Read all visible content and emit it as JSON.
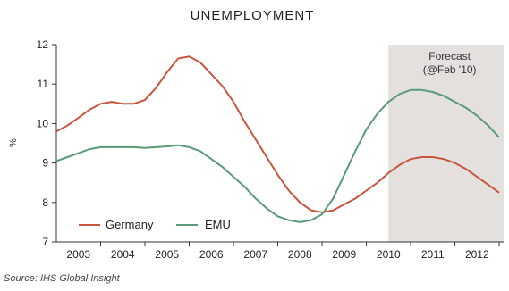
{
  "colors": {
    "germany": "#c8553d",
    "emu": "#5b9a78",
    "forecast_shade": "#e3e0dd",
    "axis": "#333333",
    "text": "#222222"
  },
  "chart_data": {
    "type": "line",
    "title": "UNEMPLOYMENT",
    "ylabel": "%",
    "xlabel": "",
    "ylim": [
      7,
      12
    ],
    "xlim": [
      2002.5,
      2012.6
    ],
    "yticks": [
      7,
      8,
      9,
      10,
      11,
      12
    ],
    "x_tick_labels": [
      "2003",
      "2004",
      "2005",
      "2006",
      "2007",
      "2008",
      "2009",
      "2010",
      "2011",
      "2012"
    ],
    "x_ticks_at": [
      2003,
      2004,
      2005,
      2006,
      2007,
      2008,
      2009,
      2010,
      2011,
      2012
    ],
    "forecast_region": {
      "start": 2010,
      "end": 2012.6,
      "label_line1": "Forecast",
      "label_line2": "(@Feb '10)"
    },
    "legend": {
      "placement": "bottom-left"
    },
    "grid": false,
    "series": [
      {
        "name": "Germany",
        "color": "#c8553d",
        "x": [
          2002.5,
          2002.75,
          2003.0,
          2003.25,
          2003.5,
          2003.75,
          2004.0,
          2004.25,
          2004.5,
          2004.75,
          2005.0,
          2005.25,
          2005.5,
          2005.75,
          2006.0,
          2006.25,
          2006.5,
          2006.75,
          2007.0,
          2007.25,
          2007.5,
          2007.75,
          2008.0,
          2008.25,
          2008.5,
          2008.75,
          2009.0,
          2009.25,
          2009.5,
          2009.75,
          2010.0,
          2010.25,
          2010.5,
          2010.75,
          2011.0,
          2011.25,
          2011.5,
          2011.75,
          2012.0,
          2012.25,
          2012.5
        ],
        "values": [
          9.8,
          9.95,
          10.15,
          10.35,
          10.5,
          10.55,
          10.5,
          10.5,
          10.6,
          10.9,
          11.3,
          11.65,
          11.7,
          11.55,
          11.25,
          10.95,
          10.55,
          10.05,
          9.6,
          9.15,
          8.7,
          8.3,
          8.0,
          7.8,
          7.75,
          7.8,
          7.95,
          8.1,
          8.3,
          8.5,
          8.75,
          8.95,
          9.1,
          9.15,
          9.15,
          9.1,
          9.0,
          8.85,
          8.65,
          8.45,
          8.25
        ]
      },
      {
        "name": "EMU",
        "color": "#5b9a78",
        "x": [
          2002.5,
          2002.75,
          2003.0,
          2003.25,
          2003.5,
          2003.75,
          2004.0,
          2004.25,
          2004.5,
          2004.75,
          2005.0,
          2005.25,
          2005.5,
          2005.75,
          2006.0,
          2006.25,
          2006.5,
          2006.75,
          2007.0,
          2007.25,
          2007.5,
          2007.75,
          2008.0,
          2008.25,
          2008.5,
          2008.75,
          2009.0,
          2009.25,
          2009.5,
          2009.75,
          2010.0,
          2010.25,
          2010.5,
          2010.75,
          2011.0,
          2011.25,
          2011.5,
          2011.75,
          2012.0,
          2012.25,
          2012.5
        ],
        "values": [
          9.05,
          9.15,
          9.25,
          9.35,
          9.4,
          9.4,
          9.4,
          9.4,
          9.38,
          9.4,
          9.42,
          9.45,
          9.4,
          9.3,
          9.1,
          8.9,
          8.65,
          8.4,
          8.1,
          7.85,
          7.65,
          7.55,
          7.5,
          7.55,
          7.7,
          8.1,
          8.7,
          9.3,
          9.85,
          10.25,
          10.55,
          10.75,
          10.85,
          10.85,
          10.8,
          10.7,
          10.55,
          10.4,
          10.2,
          9.95,
          9.65
        ]
      }
    ],
    "source_note": "Source: IHS Global Insight"
  }
}
